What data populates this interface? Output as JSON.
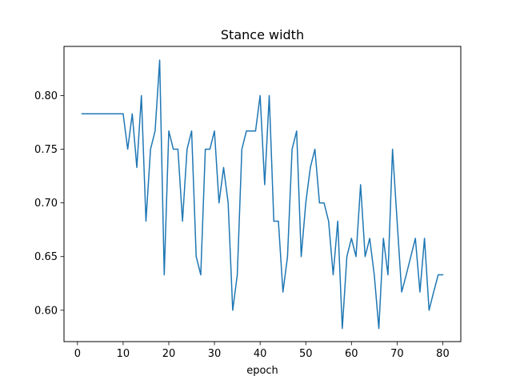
{
  "chart_data": {
    "type": "line",
    "title": "Stance width",
    "xlabel": "epoch",
    "ylabel": "",
    "xlim": [
      -2.95,
      83.95
    ],
    "ylim": [
      0.5708,
      0.8458
    ],
    "x_ticks": [
      0,
      10,
      20,
      30,
      40,
      50,
      60,
      70,
      80
    ],
    "y_ticks": [
      0.6,
      0.65,
      0.7,
      0.75,
      0.8
    ],
    "x_tick_labels": [
      "0",
      "10",
      "20",
      "30",
      "40",
      "50",
      "60",
      "70",
      "80"
    ],
    "y_tick_labels": [
      "0.60",
      "0.65",
      "0.70",
      "0.75",
      "0.80"
    ],
    "grid": false,
    "series": [
      {
        "color": "#1f77b4",
        "x": [
          1,
          2,
          3,
          4,
          5,
          6,
          7,
          8,
          9,
          10,
          11,
          12,
          13,
          14,
          15,
          16,
          17,
          18,
          19,
          20,
          21,
          22,
          23,
          24,
          25,
          26,
          27,
          28,
          29,
          30,
          31,
          32,
          33,
          34,
          35,
          36,
          37,
          38,
          39,
          40,
          41,
          42,
          43,
          44,
          45,
          46,
          47,
          48,
          49,
          50,
          51,
          52,
          53,
          54,
          55,
          56,
          57,
          58,
          59,
          60,
          61,
          62,
          63,
          64,
          65,
          66,
          67,
          68,
          69,
          70,
          71,
          72,
          73,
          74,
          75,
          76,
          77,
          78,
          79,
          80
        ],
        "values": [
          0.783,
          0.783,
          0.783,
          0.783,
          0.783,
          0.783,
          0.783,
          0.783,
          0.783,
          0.783,
          0.75,
          0.783,
          0.733,
          0.8,
          0.683,
          0.75,
          0.767,
          0.833,
          0.633,
          0.767,
          0.75,
          0.75,
          0.683,
          0.75,
          0.767,
          0.65,
          0.633,
          0.75,
          0.75,
          0.767,
          0.7,
          0.733,
          0.7,
          0.6,
          0.633,
          0.75,
          0.767,
          0.767,
          0.767,
          0.8,
          0.717,
          0.8,
          0.683,
          0.683,
          0.617,
          0.65,
          0.75,
          0.767,
          0.65,
          0.7,
          0.733,
          0.75,
          0.7,
          0.7,
          0.683,
          0.633,
          0.683,
          0.583,
          0.65,
          0.667,
          0.65,
          0.717,
          0.65,
          0.667,
          0.633,
          0.583,
          0.667,
          0.633,
          0.75,
          0.683,
          0.617,
          0.633,
          0.65,
          0.667,
          0.617,
          0.667,
          0.6,
          0.617,
          0.633,
          0.633
        ]
      }
    ]
  }
}
